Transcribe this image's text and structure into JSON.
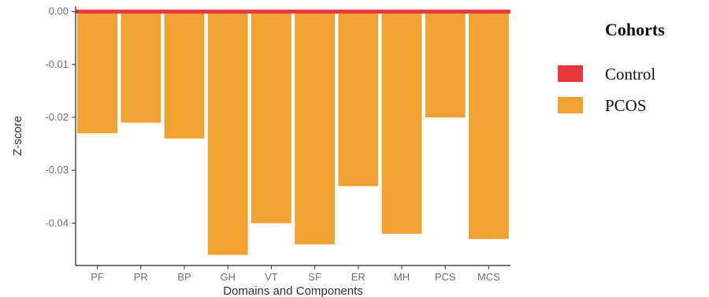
{
  "chart_data": {
    "type": "bar",
    "categories": [
      "PF",
      "PR",
      "BP",
      "GH",
      "VT",
      "SF",
      "ER",
      "MH",
      "PCS",
      "MCS"
    ],
    "series": [
      {
        "name": "Control",
        "values": [
          0,
          0,
          0,
          0,
          0,
          0,
          0,
          0,
          0,
          0
        ],
        "color": "#e8383d"
      },
      {
        "name": "PCOS",
        "values": [
          -0.023,
          -0.021,
          -0.024,
          -0.046,
          -0.04,
          -0.044,
          -0.033,
          -0.042,
          -0.02,
          -0.043
        ],
        "color": "#f0a232"
      }
    ],
    "title": "",
    "xlabel": "Domains and Components",
    "ylabel": "Z-score",
    "ylim": [
      -0.048,
      0.001
    ],
    "yticks": [
      0.0,
      -0.01,
      -0.02,
      -0.03,
      -0.04
    ],
    "ytick_labels": [
      "0.00",
      "-0.01",
      "-0.02",
      "-0.03",
      "-0.04"
    ],
    "grid": false,
    "legend": {
      "title": "Cohorts",
      "position": "right",
      "items": [
        {
          "label": "Control",
          "color": "#e8383d"
        },
        {
          "label": "PCOS",
          "color": "#f0a232"
        }
      ]
    }
  }
}
